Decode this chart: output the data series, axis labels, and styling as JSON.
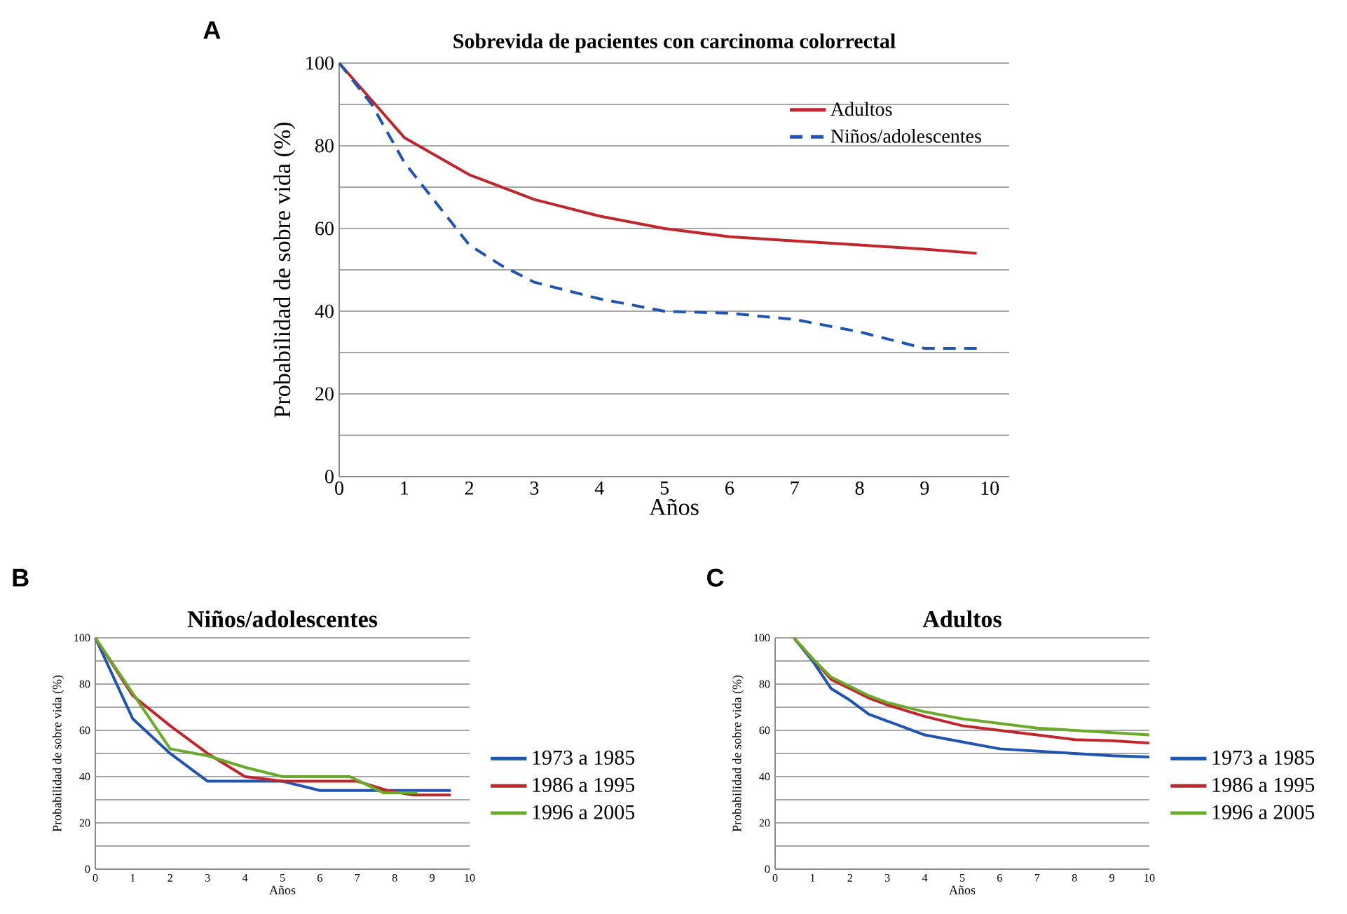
{
  "chart_data": [
    {
      "type": "line",
      "title": "Sobrevida de pacientes con carcinoma colorrectal",
      "xlabel": "Años",
      "ylabel": "Probabilidad de sobre vida (%)",
      "annotations": [
        "A"
      ],
      "xlim": [
        0,
        10.3
      ],
      "ylim": [
        0,
        100
      ],
      "xticks": [
        0,
        1,
        2,
        3,
        4,
        5,
        6,
        7,
        8,
        9,
        10
      ],
      "yticks": [
        0,
        {
          "value": 10,
          "label": null
        },
        20,
        {
          "value": 30,
          "label": null
        },
        40,
        {
          "value": 50,
          "label": null
        },
        60,
        {
          "value": 70,
          "label": null
        },
        80,
        {
          "value": 90,
          "label": null
        },
        100
      ],
      "grid": "y",
      "legend": "top right",
      "series": [
        {
          "name": "Adultos",
          "color": "#c0272d",
          "line_style": "solid",
          "x": [
            0,
            1,
            2,
            3,
            4,
            5,
            6,
            7,
            8,
            9,
            9.8
          ],
          "values": [
            100,
            82,
            73,
            67,
            63,
            60,
            58,
            57,
            56,
            55,
            54
          ]
        },
        {
          "name": "Niños/adolescentes",
          "color": "#1f55b0",
          "line_style": "dashed",
          "x": [
            0,
            0.5,
            1,
            1.5,
            2,
            2.5,
            3,
            4,
            5,
            6,
            7,
            8,
            9,
            9.8
          ],
          "values": [
            100,
            90,
            76,
            66,
            56,
            51,
            47,
            43,
            40,
            39.5,
            38,
            35,
            31,
            31
          ]
        }
      ]
    },
    {
      "type": "line",
      "title": "Niños/adolescentes",
      "xlabel": "Años",
      "ylabel": "Probabilidad de sobre vida (%)",
      "annotations": [
        "B"
      ],
      "xlim": [
        0,
        10
      ],
      "ylim": [
        0,
        100
      ],
      "xticks": [
        0,
        1,
        2,
        3,
        4,
        5,
        6,
        7,
        8,
        9,
        10
      ],
      "yticks": [
        0,
        {
          "value": 10,
          "label": null
        },
        20,
        {
          "value": 30,
          "label": null
        },
        40,
        {
          "value": 50,
          "label": null
        },
        60,
        {
          "value": 70,
          "label": null
        },
        80,
        {
          "value": 90,
          "label": null
        },
        100
      ],
      "grid": "y",
      "legend": "right",
      "series": [
        {
          "name": "1973 a 1985",
          "color": "#1f55b0",
          "x": [
            0,
            1,
            2,
            3,
            4,
            5,
            6,
            7,
            8,
            9,
            9.5
          ],
          "values": [
            100,
            65,
            50,
            38,
            38,
            38,
            34,
            34,
            34,
            34,
            34
          ]
        },
        {
          "name": "1986 a 1995",
          "color": "#c0272d",
          "x": [
            0,
            1,
            2,
            3,
            4,
            5,
            6,
            7,
            7.8,
            8.5,
            9.5
          ],
          "values": [
            100,
            75,
            62,
            50,
            40,
            38,
            38,
            38,
            34,
            32,
            32
          ]
        },
        {
          "name": "1996 a 2005",
          "color": "#6aaa2a",
          "x": [
            0,
            1,
            2,
            3,
            4,
            5,
            6,
            6.8,
            7.7,
            8.6
          ],
          "values": [
            100,
            76,
            52,
            49,
            44,
            40,
            40,
            40,
            33,
            33
          ]
        }
      ]
    },
    {
      "type": "line",
      "title": "Adultos",
      "xlabel": "Años",
      "ylabel": "Probabilidad de sobre vida (%)",
      "annotations": [
        "C"
      ],
      "xlim": [
        0,
        10
      ],
      "ylim": [
        0,
        100
      ],
      "xticks": [
        0,
        1,
        2,
        3,
        4,
        5,
        6,
        7,
        8,
        9,
        10
      ],
      "yticks": [
        0,
        {
          "value": 10,
          "label": null
        },
        20,
        {
          "value": 30,
          "label": null
        },
        40,
        {
          "value": 50,
          "label": null
        },
        60,
        {
          "value": 70,
          "label": null
        },
        80,
        {
          "value": 90,
          "label": null
        },
        100
      ],
      "grid": "y",
      "legend": "right",
      "series": [
        {
          "name": "1973 a 1985",
          "color": "#1f55b0",
          "x": [
            0.5,
            1,
            1.5,
            2,
            2.5,
            3,
            4,
            5,
            6,
            7,
            8,
            9,
            10
          ],
          "values": [
            100,
            90,
            78,
            73,
            67,
            64,
            58,
            55,
            52,
            51,
            50,
            49,
            48.5
          ]
        },
        {
          "name": "1986 a 1995",
          "color": "#c0272d",
          "x": [
            0.5,
            1,
            1.5,
            2,
            2.5,
            3,
            4,
            5,
            6,
            7,
            8,
            9,
            10
          ],
          "values": [
            100,
            91,
            82,
            78,
            74,
            71,
            66,
            62,
            60,
            58,
            56,
            55.5,
            54.5
          ]
        },
        {
          "name": "1996 a 2005",
          "color": "#6aaa2a",
          "x": [
            0.5,
            1,
            1.5,
            2,
            2.5,
            3,
            4,
            5,
            6,
            7,
            8,
            9,
            10
          ],
          "values": [
            100,
            91,
            83,
            79,
            75,
            72,
            68,
            65,
            63,
            61,
            60,
            59,
            58
          ]
        }
      ]
    }
  ]
}
